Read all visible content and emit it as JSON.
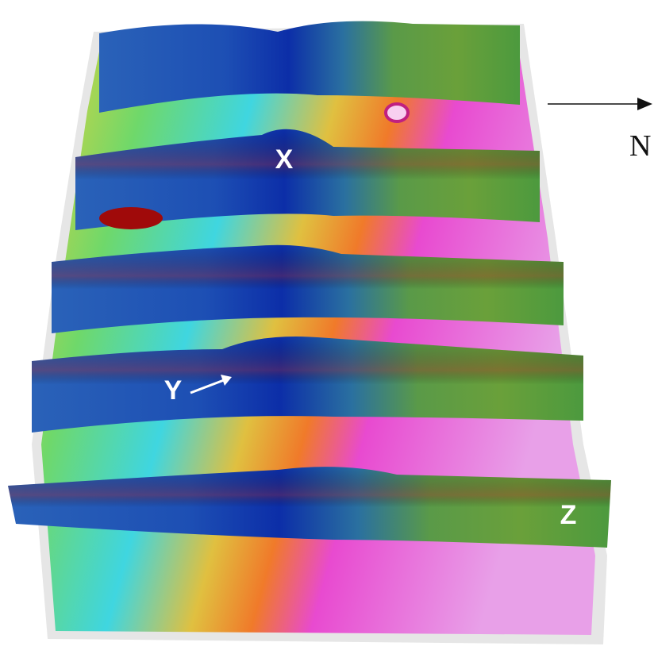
{
  "labels": {
    "x": "X",
    "y": "Y",
    "z": "Z",
    "north": "N"
  }
}
